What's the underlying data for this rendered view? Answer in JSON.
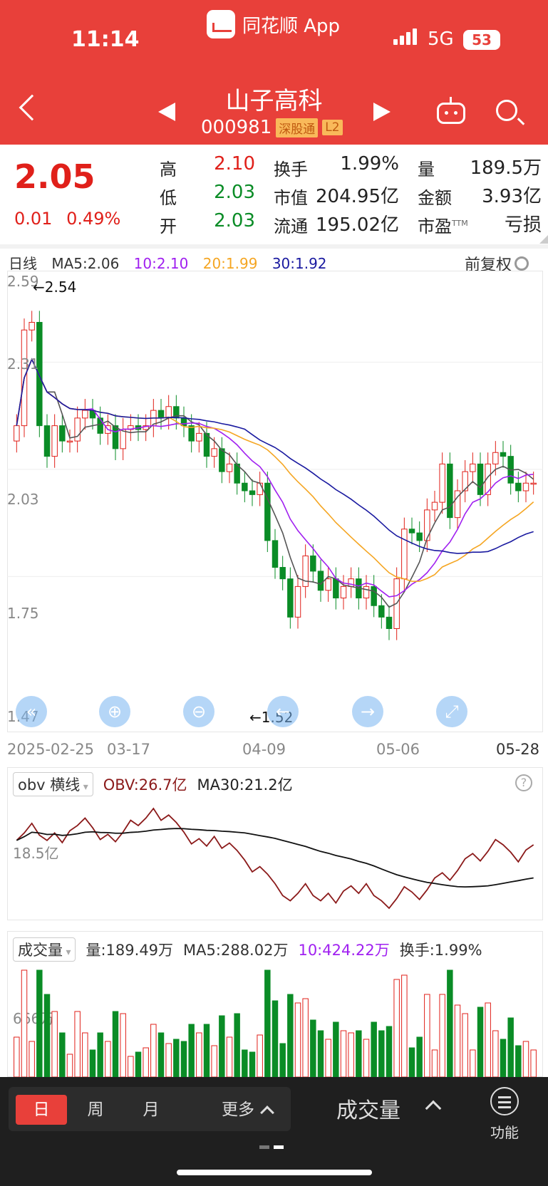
{
  "status_bar": {
    "time": "11:14",
    "app_name": "同花顺 App",
    "network": "5G",
    "battery": "53"
  },
  "header": {
    "stock_name": "山子高科",
    "stock_code": "000981",
    "tag1": "深股通",
    "tag2": "L2"
  },
  "quote": {
    "price": "2.05",
    "change": "0.01",
    "change_pct": "0.49%",
    "high_label": "高",
    "high": "2.10",
    "low_label": "低",
    "low": "2.03",
    "open_label": "开",
    "open": "2.03",
    "turnover_label": "换手",
    "turnover": "1.99%",
    "mktcap_label": "市值",
    "mktcap": "204.95亿",
    "float_label": "流通",
    "float": "195.02亿",
    "volume_label": "量",
    "volume": "189.5万",
    "amount_label": "金额",
    "amount": "3.93亿",
    "pe_label": "市盈",
    "pe_sup": "TTM",
    "pe": "亏损"
  },
  "main_chart": {
    "period_label": "日线",
    "ma5": "MA5:2.06",
    "ma10": "10:2.10",
    "ma20": "20:1.99",
    "ma30": "30:1.92",
    "adjust_label": "前复权",
    "y_labels": [
      "2.59",
      "2.31",
      "2.03",
      "1.75",
      "1.47"
    ],
    "max_label": "←2.54",
    "min_label": "←1.52",
    "dates": [
      "2025-02-25",
      "03-17",
      "04-09",
      "05-06",
      "05-28"
    ],
    "colors": {
      "up": "#e0201a",
      "down": "#0a8c26",
      "ma5": "#555555",
      "ma10": "#a020f0",
      "ma20": "#f5a623",
      "ma30": "#1a1aa0"
    }
  },
  "chart_data": {
    "type": "candlestick",
    "ylim": [
      1.47,
      2.59
    ],
    "closes": [
      2.2,
      2.45,
      2.47,
      2.2,
      2.12,
      2.2,
      2.16,
      2.16,
      2.22,
      2.24,
      2.22,
      2.18,
      2.2,
      2.14,
      2.19,
      2.2,
      2.19,
      2.2,
      2.24,
      2.22,
      2.25,
      2.22,
      2.2,
      2.16,
      2.18,
      2.12,
      2.14,
      2.08,
      2.1,
      2.05,
      2.03,
      2.02,
      2.05,
      1.9,
      1.83,
      1.8,
      1.7,
      1.78,
      1.86,
      1.82,
      1.77,
      1.8,
      1.75,
      1.78,
      1.8,
      1.75,
      1.78,
      1.73,
      1.7,
      1.67,
      1.8,
      1.93,
      1.92,
      1.9,
      1.98,
      2.0,
      2.1,
      1.96,
      2.03,
      2.08,
      2.1,
      2.02,
      2.1,
      2.13,
      2.12,
      2.05,
      2.03,
      2.05,
      2.05
    ],
    "volume_label": "量:189.49万",
    "volume_ma5": "MA5:288.02万",
    "volume_ma10": "10:424.22万",
    "volume_turnover": "换手:1.99%",
    "volume_axis_label": "666万"
  },
  "obv": {
    "selector": "obv 横线",
    "value": "OBV:26.7亿",
    "ma30": "MA30:21.2亿",
    "axis_label": "18.5亿",
    "help": "?"
  },
  "volume_panel": {
    "selector": "成交量"
  },
  "bottom_bar": {
    "tabs": [
      "日",
      "周",
      "月",
      "更多"
    ],
    "indicator": "成交量",
    "func_label": "功能"
  }
}
